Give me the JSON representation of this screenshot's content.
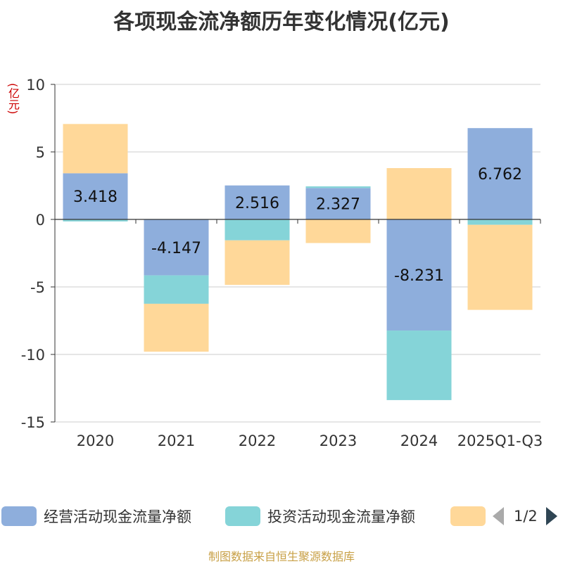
{
  "chart_data": {
    "type": "bar",
    "stacked": true,
    "title": "各项现金流净额历年变化情况(亿元)",
    "ylabel": "(亿元)",
    "ylim": [
      -15,
      10
    ],
    "yticks": [
      10,
      5,
      0,
      -5,
      -10,
      -15
    ],
    "categories": [
      "2020",
      "2021",
      "2022",
      "2023",
      "2024",
      "2025Q1-Q3"
    ],
    "series": [
      {
        "name": "经营活动现金流量净额",
        "color": "#8eaedc",
        "values": [
          3.418,
          -4.147,
          2.516,
          2.327,
          -8.231,
          6.762
        ],
        "labels": [
          "3.418",
          "-4.147",
          "2.516",
          "2.327",
          "-8.231",
          "6.762"
        ]
      },
      {
        "name": "投资活动现金流量净额",
        "color": "#85d4d8",
        "values": [
          -0.15,
          -2.1,
          -1.55,
          0.12,
          -5.15,
          -0.4
        ]
      },
      {
        "name": "",
        "color": "#ffd899",
        "values": [
          3.65,
          -3.55,
          -3.3,
          -1.75,
          3.8,
          -6.3
        ]
      }
    ]
  },
  "legend": {
    "items": [
      {
        "label": "经营活动现金流量净额",
        "color": "#8eaedc"
      },
      {
        "label": "投资活动现金流量净额",
        "color": "#85d4d8"
      },
      {
        "label": "",
        "color": "#ffd899"
      }
    ],
    "page": "1/2"
  },
  "source": "制图数据来自恒生聚源数据库"
}
